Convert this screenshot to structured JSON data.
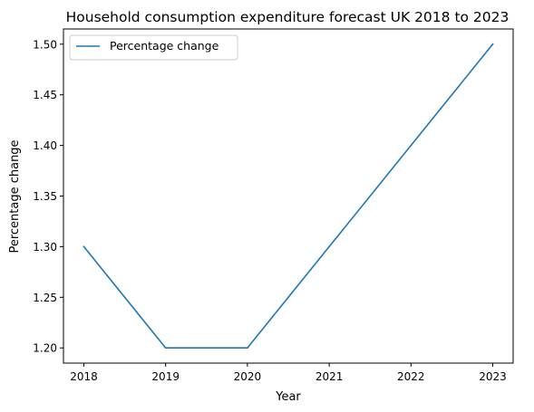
{
  "chart_data": {
    "type": "line",
    "title": "Household consumption expenditure forecast UK 2018 to 2023",
    "xlabel": "Year",
    "ylabel": "Percentage change",
    "x": [
      "2018",
      "2019",
      "2020",
      "2021",
      "2022",
      "2023"
    ],
    "series": [
      {
        "name": "Percentage change",
        "color": "#1f77b4",
        "values": [
          1.3,
          1.2,
          1.2,
          1.3,
          1.4,
          1.5
        ]
      }
    ],
    "yticks": [
      "1.20",
      "1.25",
      "1.30",
      "1.35",
      "1.40",
      "1.45",
      "1.50"
    ],
    "ylim": [
      1.185,
      1.515
    ],
    "grid": false,
    "legend": "top-left"
  }
}
